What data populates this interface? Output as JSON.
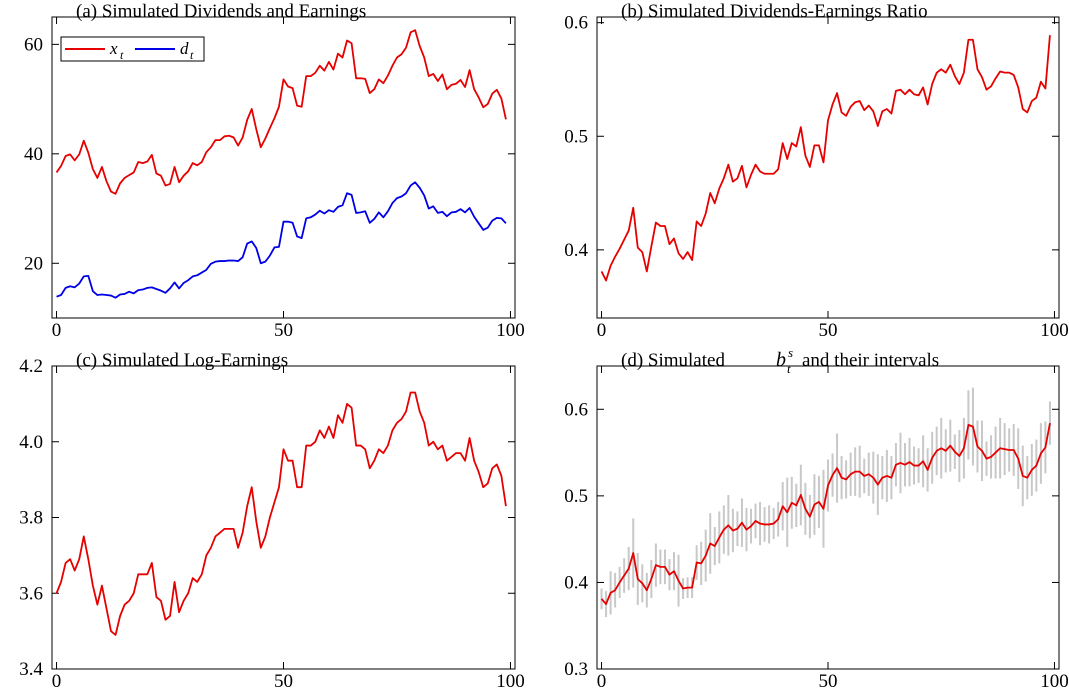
{
  "chart_data": [
    {
      "type": "line",
      "title": "(a) Simulated Dividends and Earnings",
      "xlim": [
        -1,
        101
      ],
      "ylim": [
        10,
        65
      ],
      "xticks": [
        0,
        50,
        100
      ],
      "xtick_labels": [
        "0",
        "50",
        "100"
      ],
      "yticks": [
        20,
        40,
        60
      ],
      "ytick_labels": [
        "20",
        "40",
        "60"
      ],
      "legend": {
        "placement": "top-left",
        "entries": [
          {
            "main": "x",
            "sub": "t",
            "color": "#e60000"
          },
          {
            "main": "d",
            "sub": "t",
            "color": "#0000e6"
          }
        ]
      },
      "series": [
        {
          "name": "x_t",
          "color": "#e60000",
          "values": [
            36.6,
            37.8,
            39.6,
            39.9,
            38.8,
            39.9,
            42.4,
            40.2,
            37.2,
            35.6,
            37.6,
            35.0,
            33.1,
            32.7,
            34.6,
            35.6,
            36.1,
            36.6,
            38.5,
            38.3,
            38.6,
            39.8,
            36.4,
            36.0,
            34.2,
            34.5,
            37.6,
            34.8,
            36.0,
            36.8,
            38.3,
            37.9,
            38.5,
            40.3,
            41.2,
            42.5,
            42.5,
            43.2,
            43.3,
            43.0,
            41.5,
            43.0,
            46.2,
            48.2,
            44.5,
            41.2,
            42.8,
            44.7,
            46.5,
            48.6,
            53.6,
            52.3,
            52.0,
            48.8,
            48.6,
            54.2,
            54.2,
            54.8,
            56.1,
            55.2,
            56.8,
            55.4,
            58.3,
            57.6,
            60.7,
            60.2,
            53.8,
            53.8,
            53.7,
            51.1,
            51.8,
            53.6,
            52.9,
            54.3,
            56.1,
            57.6,
            58.2,
            59.4,
            62.2,
            62.6,
            59.7,
            57.6,
            54.2,
            54.6,
            53.3,
            54.5,
            51.8,
            52.6,
            52.8,
            53.5,
            52.2,
            55.3,
            51.8,
            50.3,
            48.5,
            49.1,
            51.0,
            51.7,
            50.1,
            46.3
          ]
        },
        {
          "name": "d_t",
          "color": "#0000e6",
          "values": [
            13.9,
            14.2,
            15.5,
            15.8,
            15.6,
            16.3,
            17.6,
            17.7,
            14.9,
            14.2,
            14.3,
            14.2,
            14.1,
            13.7,
            14.3,
            14.4,
            14.8,
            14.5,
            15.1,
            15.2,
            15.5,
            15.6,
            15.3,
            15.0,
            14.6,
            15.4,
            16.5,
            15.4,
            16.4,
            16.9,
            17.6,
            17.8,
            18.3,
            18.8,
            19.9,
            20.3,
            20.4,
            20.4,
            20.5,
            20.5,
            20.4,
            21.1,
            23.6,
            24.0,
            22.8,
            20.0,
            20.3,
            21.4,
            22.9,
            23.0,
            27.6,
            27.6,
            27.4,
            24.9,
            24.6,
            28.2,
            28.4,
            28.9,
            29.6,
            29.1,
            29.7,
            29.4,
            30.3,
            30.6,
            32.8,
            32.5,
            29.2,
            29.3,
            29.5,
            27.4,
            28.1,
            29.3,
            28.4,
            29.5,
            31.0,
            31.9,
            32.2,
            32.8,
            34.2,
            34.8,
            33.8,
            32.4,
            30.0,
            30.4,
            29.2,
            29.4,
            28.6,
            29.3,
            29.4,
            29.9,
            29.3,
            30.1,
            28.5,
            27.3,
            26.1,
            26.5,
            27.8,
            28.3,
            28.2,
            27.3
          ]
        }
      ]
    },
    {
      "type": "line",
      "title": "(b) Simulated Dividends-Earnings Ratio",
      "xlim": [
        -1,
        101
      ],
      "ylim": [
        0.34,
        0.605
      ],
      "xticks": [
        0,
        50,
        100
      ],
      "xtick_labels": [
        "0",
        "50",
        "100"
      ],
      "yticks": [
        0.4,
        0.5,
        0.6
      ],
      "ytick_labels": [
        "0.4",
        "0.5",
        "0.6"
      ],
      "series": [
        {
          "color": "#e60000",
          "values": [
            0.381,
            0.373,
            0.386,
            0.394,
            0.401,
            0.409,
            0.417,
            0.437,
            0.402,
            0.398,
            0.381,
            0.403,
            0.424,
            0.421,
            0.421,
            0.405,
            0.41,
            0.397,
            0.392,
            0.398,
            0.391,
            0.425,
            0.421,
            0.432,
            0.45,
            0.441,
            0.454,
            0.463,
            0.475,
            0.46,
            0.463,
            0.474,
            0.455,
            0.466,
            0.475,
            0.469,
            0.467,
            0.467,
            0.467,
            0.471,
            0.494,
            0.48,
            0.494,
            0.491,
            0.508,
            0.483,
            0.473,
            0.492,
            0.492,
            0.477,
            0.514,
            0.528,
            0.538,
            0.521,
            0.518,
            0.526,
            0.53,
            0.531,
            0.523,
            0.527,
            0.522,
            0.509,
            0.522,
            0.524,
            0.52,
            0.54,
            0.541,
            0.537,
            0.541,
            0.537,
            0.536,
            0.543,
            0.528,
            0.546,
            0.556,
            0.559,
            0.556,
            0.563,
            0.553,
            0.546,
            0.556,
            0.585,
            0.585,
            0.559,
            0.552,
            0.541,
            0.544,
            0.551,
            0.557,
            0.556,
            0.556,
            0.554,
            0.543,
            0.524,
            0.521,
            0.531,
            0.534,
            0.548,
            0.542,
            0.589
          ]
        }
      ]
    },
    {
      "type": "line",
      "title": "(c) Simulated Log-Earnings",
      "xlim": [
        -1,
        101
      ],
      "ylim": [
        3.4,
        4.2
      ],
      "xticks": [
        0,
        50,
        100
      ],
      "xtick_labels": [
        "0",
        "50",
        "100"
      ],
      "yticks": [
        3.4,
        3.6,
        3.8,
        4.0,
        4.2
      ],
      "ytick_labels": [
        "3.4",
        "3.6",
        "3.8",
        "4.0",
        "4.2"
      ],
      "series": [
        {
          "color": "#e60000",
          "values": [
            3.6,
            3.63,
            3.68,
            3.69,
            3.66,
            3.69,
            3.75,
            3.69,
            3.62,
            3.57,
            3.62,
            3.56,
            3.5,
            3.49,
            3.54,
            3.57,
            3.58,
            3.6,
            3.65,
            3.65,
            3.65,
            3.68,
            3.59,
            3.58,
            3.53,
            3.54,
            3.63,
            3.55,
            3.58,
            3.6,
            3.64,
            3.63,
            3.65,
            3.7,
            3.72,
            3.75,
            3.76,
            3.77,
            3.77,
            3.77,
            3.72,
            3.76,
            3.83,
            3.88,
            3.79,
            3.72,
            3.75,
            3.8,
            3.84,
            3.88,
            3.98,
            3.95,
            3.95,
            3.88,
            3.88,
            3.99,
            3.99,
            4.0,
            4.03,
            4.01,
            4.04,
            4.01,
            4.07,
            4.05,
            4.1,
            4.09,
            3.99,
            3.99,
            3.98,
            3.93,
            3.95,
            3.98,
            3.97,
            3.99,
            4.03,
            4.05,
            4.06,
            4.08,
            4.13,
            4.13,
            4.08,
            4.05,
            3.99,
            4.0,
            3.98,
            3.99,
            3.95,
            3.96,
            3.97,
            3.97,
            3.95,
            4.01,
            3.95,
            3.92,
            3.88,
            3.89,
            3.93,
            3.94,
            3.91,
            3.83
          ]
        }
      ]
    },
    {
      "type": "line",
      "title_prefix": "(d) Simulated",
      "title_symbol": {
        "main": "b",
        "sub": "t",
        "sup": "s"
      },
      "title_suffix": "and their intervals",
      "xlim": [
        -1,
        101
      ],
      "ylim": [
        0.3,
        0.65
      ],
      "xticks": [
        0,
        50,
        100
      ],
      "xtick_labels": [
        "0",
        "50",
        "100"
      ],
      "yticks": [
        0.3,
        0.4,
        0.5,
        0.6
      ],
      "ytick_labels": [
        "0.3",
        "0.4",
        "0.5",
        "0.6"
      ],
      "series": [
        {
          "color": "#e60000",
          "values": [
            0.381,
            0.375,
            0.388,
            0.391,
            0.4,
            0.408,
            0.416,
            0.434,
            0.404,
            0.399,
            0.391,
            0.404,
            0.42,
            0.418,
            0.418,
            0.409,
            0.413,
            0.402,
            0.393,
            0.394,
            0.394,
            0.423,
            0.422,
            0.431,
            0.445,
            0.442,
            0.452,
            0.461,
            0.466,
            0.46,
            0.462,
            0.469,
            0.461,
            0.465,
            0.471,
            0.468,
            0.467,
            0.467,
            0.468,
            0.473,
            0.488,
            0.481,
            0.492,
            0.489,
            0.501,
            0.485,
            0.476,
            0.49,
            0.493,
            0.485,
            0.512,
            0.524,
            0.532,
            0.521,
            0.519,
            0.525,
            0.528,
            0.528,
            0.523,
            0.525,
            0.521,
            0.513,
            0.521,
            0.523,
            0.521,
            0.536,
            0.538,
            0.536,
            0.539,
            0.535,
            0.535,
            0.54,
            0.53,
            0.544,
            0.552,
            0.555,
            0.552,
            0.558,
            0.551,
            0.546,
            0.555,
            0.582,
            0.58,
            0.557,
            0.552,
            0.543,
            0.545,
            0.55,
            0.555,
            0.554,
            0.553,
            0.553,
            0.543,
            0.523,
            0.521,
            0.53,
            0.535,
            0.549,
            0.556,
            0.584
          ]
        }
      ],
      "interval_color": "#c8c8c8",
      "interval_halfwidths": [
        0.012,
        0.015,
        0.025,
        0.02,
        0.018,
        0.02,
        0.025,
        0.04,
        0.03,
        0.022,
        0.02,
        0.022,
        0.025,
        0.02,
        0.02,
        0.018,
        0.022,
        0.03,
        0.012,
        0.012,
        0.012,
        0.02,
        0.025,
        0.03,
        0.035,
        0.022,
        0.03,
        0.028,
        0.035,
        0.025,
        0.02,
        0.028,
        0.025,
        0.02,
        0.02,
        0.025,
        0.02,
        0.022,
        0.018,
        0.02,
        0.028,
        0.04,
        0.03,
        0.025,
        0.035,
        0.03,
        0.025,
        0.035,
        0.03,
        0.045,
        0.03,
        0.025,
        0.04,
        0.025,
        0.022,
        0.025,
        0.028,
        0.03,
        0.02,
        0.025,
        0.03,
        0.035,
        0.025,
        0.03,
        0.025,
        0.025,
        0.035,
        0.025,
        0.028,
        0.022,
        0.02,
        0.03,
        0.025,
        0.03,
        0.028,
        0.035,
        0.025,
        0.03,
        0.02,
        0.03,
        0.035,
        0.04,
        0.045,
        0.03,
        0.035,
        0.02,
        0.025,
        0.03,
        0.035,
        0.03,
        0.025,
        0.03,
        0.035,
        0.035,
        0.025,
        0.03,
        0.03,
        0.035,
        0.03,
        0.025
      ]
    }
  ]
}
